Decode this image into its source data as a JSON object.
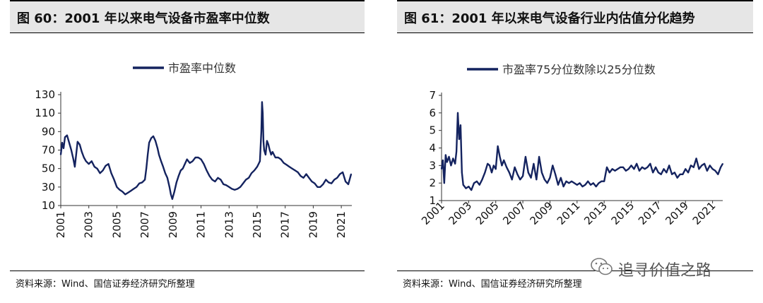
{
  "left": {
    "title": "图 60：2001 年以来电气设备市盈率中位数",
    "source": "资料来源：Wind、国信证券经济研究所整理"
  },
  "right": {
    "title": "图 61：2001 年以来电气设备行业内估值分化趋势",
    "source": "资料来源：Wind、国信证券经济研究所整理"
  },
  "watermark": {
    "text": "追寻价值之路",
    "icon": "wechat-icon"
  },
  "colors": {
    "series": "#14235f",
    "title_bg": "#e6e6e6"
  },
  "chart_data": [
    {
      "type": "line",
      "title": "",
      "xlabel": "",
      "ylabel": "",
      "ylim": [
        10,
        130
      ],
      "yticks": [
        10,
        30,
        50,
        70,
        90,
        110,
        130
      ],
      "xticks": [
        "2001",
        "2003",
        "2005",
        "2007",
        "2009",
        "2011",
        "2013",
        "2015",
        "2017",
        "2019",
        "2021"
      ],
      "xlim": [
        2001,
        2021.75
      ],
      "grid": false,
      "legend": "top-center",
      "series": [
        {
          "name": "市盈率中位数",
          "x": [
            2001.0,
            2001.1,
            2001.2,
            2001.3,
            2001.45,
            2001.6,
            2001.75,
            2001.9,
            2002.0,
            2002.1,
            2002.2,
            2002.35,
            2002.5,
            2002.65,
            2002.8,
            2003.0,
            2003.2,
            2003.4,
            2003.6,
            2003.8,
            2004.0,
            2004.2,
            2004.4,
            2004.5,
            2004.6,
            2004.8,
            2005.0,
            2005.2,
            2005.4,
            2005.6,
            2005.8,
            2006.0,
            2006.2,
            2006.4,
            2006.6,
            2006.8,
            2007.0,
            2007.1,
            2007.2,
            2007.3,
            2007.45,
            2007.6,
            2007.75,
            2007.9,
            2008.0,
            2008.15,
            2008.3,
            2008.45,
            2008.6,
            2008.75,
            2008.85,
            2008.95,
            2009.1,
            2009.25,
            2009.4,
            2009.55,
            2009.7,
            2009.85,
            2010.0,
            2010.2,
            2010.4,
            2010.6,
            2010.8,
            2011.0,
            2011.2,
            2011.4,
            2011.6,
            2011.8,
            2012.0,
            2012.2,
            2012.4,
            2012.6,
            2012.8,
            2013.0,
            2013.2,
            2013.4,
            2013.6,
            2013.8,
            2014.0,
            2014.2,
            2014.4,
            2014.6,
            2014.8,
            2015.0,
            2015.1,
            2015.2,
            2015.3,
            2015.35,
            2015.4,
            2015.45,
            2015.5,
            2015.6,
            2015.7,
            2015.8,
            2015.9,
            2016.0,
            2016.1,
            2016.3,
            2016.5,
            2016.7,
            2016.9,
            2017.1,
            2017.3,
            2017.5,
            2017.7,
            2017.9,
            2018.1,
            2018.3,
            2018.5,
            2018.7,
            2018.9,
            2019.1,
            2019.3,
            2019.5,
            2019.7,
            2019.9,
            2020.1,
            2020.3,
            2020.5,
            2020.7,
            2020.9,
            2021.1,
            2021.3,
            2021.5,
            2021.7
          ],
          "values": [
            65,
            78,
            72,
            84,
            86,
            78,
            70,
            60,
            52,
            65,
            79,
            76,
            68,
            62,
            58,
            55,
            58,
            52,
            50,
            45,
            48,
            53,
            55,
            50,
            45,
            38,
            30,
            27,
            25,
            22,
            24,
            26,
            28,
            30,
            34,
            35,
            38,
            50,
            65,
            78,
            83,
            85,
            80,
            72,
            65,
            58,
            52,
            45,
            40,
            30,
            22,
            17,
            25,
            35,
            42,
            48,
            50,
            55,
            60,
            56,
            58,
            62,
            62,
            60,
            55,
            48,
            42,
            38,
            36,
            40,
            38,
            33,
            32,
            30,
            28,
            27,
            28,
            30,
            34,
            38,
            40,
            45,
            48,
            52,
            55,
            58,
            90,
            122,
            110,
            80,
            70,
            65,
            80,
            76,
            70,
            65,
            68,
            62,
            62,
            60,
            56,
            54,
            52,
            50,
            48,
            46,
            42,
            40,
            44,
            40,
            36,
            34,
            30,
            30,
            33,
            38,
            35,
            34,
            38,
            40,
            44,
            46,
            36,
            33,
            44
          ]
        }
      ]
    },
    {
      "type": "line",
      "title": "",
      "xlabel": "",
      "ylabel": "",
      "ylim": [
        1,
        7
      ],
      "yticks": [
        1,
        2,
        3,
        4,
        5,
        6,
        7
      ],
      "xticks": [
        "2001",
        "2003",
        "2005",
        "2007",
        "2009",
        "2011",
        "2013",
        "2015",
        "2017",
        "2019",
        "2021"
      ],
      "xlim": [
        2001,
        2021.75
      ],
      "grid": false,
      "legend": "top-center",
      "series": [
        {
          "name": "市盈率75分位数除以25分位数",
          "x": [
            2001.0,
            2001.1,
            2001.2,
            2001.3,
            2001.4,
            2001.55,
            2001.7,
            2001.85,
            2002.0,
            2002.1,
            2002.2,
            2002.3,
            2002.4,
            2002.5,
            2002.6,
            2002.7,
            2002.8,
            2003.0,
            2003.2,
            2003.4,
            2003.6,
            2003.8,
            2004.0,
            2004.2,
            2004.4,
            2004.55,
            2004.7,
            2004.85,
            2005.0,
            2005.15,
            2005.3,
            2005.45,
            2005.6,
            2005.8,
            2006.0,
            2006.2,
            2006.4,
            2006.6,
            2006.8,
            2007.0,
            2007.2,
            2007.4,
            2007.6,
            2007.8,
            2008.0,
            2008.2,
            2008.4,
            2008.6,
            2008.8,
            2009.0,
            2009.2,
            2009.4,
            2009.6,
            2009.8,
            2010.0,
            2010.2,
            2010.4,
            2010.6,
            2010.8,
            2011.0,
            2011.2,
            2011.4,
            2011.6,
            2011.8,
            2012.0,
            2012.2,
            2012.4,
            2012.6,
            2012.8,
            2013.0,
            2013.2,
            2013.4,
            2013.6,
            2013.8,
            2014.0,
            2014.2,
            2014.4,
            2014.6,
            2014.8,
            2015.0,
            2015.2,
            2015.4,
            2015.6,
            2015.8,
            2016.0,
            2016.2,
            2016.4,
            2016.6,
            2016.8,
            2017.0,
            2017.2,
            2017.4,
            2017.6,
            2017.8,
            2018.0,
            2018.2,
            2018.4,
            2018.6,
            2018.8,
            2019.0,
            2019.2,
            2019.4,
            2019.6,
            2019.8,
            2020.0,
            2020.2,
            2020.4,
            2020.6,
            2020.8,
            2021.0,
            2021.2,
            2021.4,
            2021.6,
            2021.75
          ],
          "values": [
            2.8,
            3.3,
            2.0,
            3.6,
            3.2,
            3.5,
            3.0,
            3.4,
            3.1,
            3.8,
            6.0,
            4.5,
            5.3,
            2.6,
            1.9,
            1.8,
            1.7,
            1.8,
            1.6,
            2.0,
            2.1,
            1.9,
            2.2,
            2.6,
            3.1,
            3.0,
            2.6,
            3.0,
            2.8,
            4.1,
            3.5,
            3.0,
            3.3,
            2.9,
            2.6,
            2.2,
            2.9,
            2.5,
            2.2,
            2.4,
            3.5,
            2.6,
            2.3,
            3.1,
            2.2,
            3.5,
            2.6,
            2.2,
            2.0,
            2.3,
            3.0,
            2.5,
            1.9,
            2.3,
            1.8,
            2.1,
            2.0,
            2.1,
            2.0,
            1.9,
            2.0,
            1.8,
            1.9,
            2.1,
            1.9,
            2.0,
            1.8,
            2.0,
            2.1,
            2.1,
            2.9,
            2.6,
            2.8,
            2.7,
            2.8,
            2.9,
            2.9,
            2.7,
            2.8,
            3.0,
            2.8,
            3.1,
            2.7,
            2.9,
            2.8,
            2.9,
            3.1,
            2.6,
            2.9,
            2.6,
            2.5,
            2.8,
            2.6,
            3.0,
            2.5,
            2.6,
            2.3,
            2.5,
            2.5,
            2.8,
            2.6,
            3.0,
            2.9,
            3.4,
            2.8,
            3.0,
            3.1,
            2.7,
            3.0,
            2.8,
            2.7,
            2.5,
            2.9,
            3.1
          ]
        }
      ]
    }
  ]
}
